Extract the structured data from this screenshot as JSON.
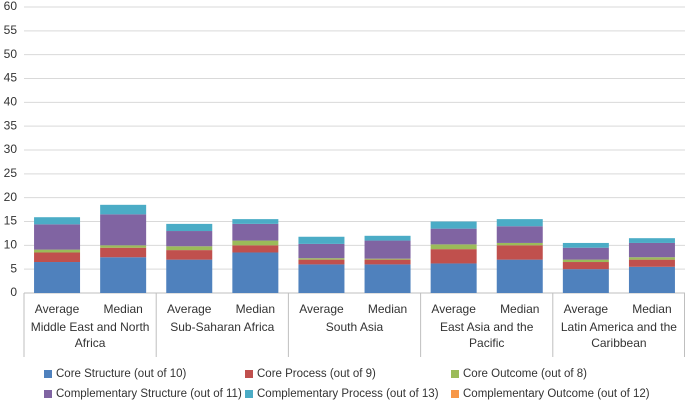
{
  "chart_data": {
    "type": "bar",
    "stacked": true,
    "categories": [
      "Average",
      "Median",
      "Average",
      "Median",
      "Average",
      "Median",
      "Average",
      "Median",
      "Average",
      "Median"
    ],
    "groups": [
      "Middle East and North Africa",
      "Sub-Saharan Africa",
      "South Asia",
      "East Asia and the Pacific",
      "Latin America and the Caribbean"
    ],
    "series": [
      {
        "name": "Core Structure (out of 10)",
        "color": "#4f81bd",
        "values": [
          6.5,
          7.5,
          7.0,
          8.5,
          6.0,
          6.0,
          6.2,
          7.0,
          5.0,
          5.5
        ]
      },
      {
        "name": "Core Process (out of 9)",
        "color": "#c0504d",
        "values": [
          2.0,
          2.0,
          2.0,
          1.5,
          1.0,
          1.0,
          3.0,
          3.0,
          1.5,
          1.5
        ]
      },
      {
        "name": "Core Outcome (out of 8)",
        "color": "#9bbb59",
        "values": [
          0.6,
          0.5,
          0.8,
          1.0,
          0.3,
          0.2,
          1.0,
          0.5,
          0.5,
          0.5
        ]
      },
      {
        "name": "Complementary Structure (out of 11)",
        "color": "#8064a2",
        "values": [
          5.3,
          6.5,
          3.2,
          3.5,
          3.0,
          3.8,
          3.3,
          3.5,
          2.5,
          3.0
        ]
      },
      {
        "name": "Complementary Process (out of 13)",
        "color": "#4bacc6",
        "values": [
          1.5,
          2.0,
          1.5,
          1.0,
          1.5,
          1.0,
          1.5,
          1.5,
          1.0,
          1.0
        ]
      },
      {
        "name": "Complementary Outcome (out of 12)",
        "color": "#f79646",
        "values": [
          0,
          0,
          0,
          0,
          0,
          0,
          0,
          0,
          0,
          0
        ]
      }
    ],
    "ylim": [
      0,
      60
    ],
    "yticks": [
      0,
      5,
      10,
      15,
      20,
      25,
      30,
      35,
      40,
      45,
      50,
      55,
      60
    ],
    "grid": true
  }
}
